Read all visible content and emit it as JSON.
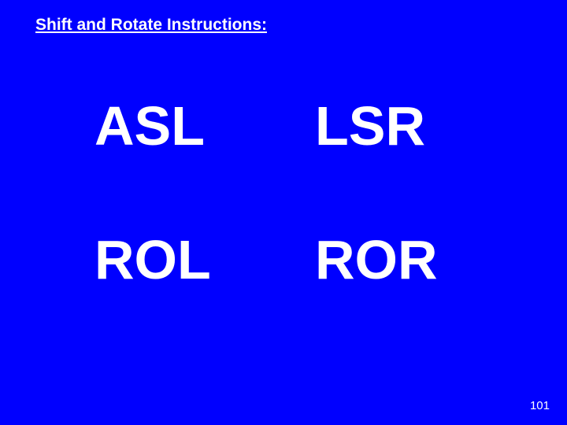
{
  "slide": {
    "title": "Shift and Rotate Instructions:",
    "background_color": "#0000ff",
    "text_color": "#ffffff",
    "instructions": {
      "top_left": "ASL",
      "top_right": "LSR",
      "bottom_left": "ROL",
      "bottom_right": "ROR"
    },
    "page_number": "101",
    "title_fontsize": 21,
    "instruction_fontsize": 70,
    "page_number_fontsize": 15
  }
}
